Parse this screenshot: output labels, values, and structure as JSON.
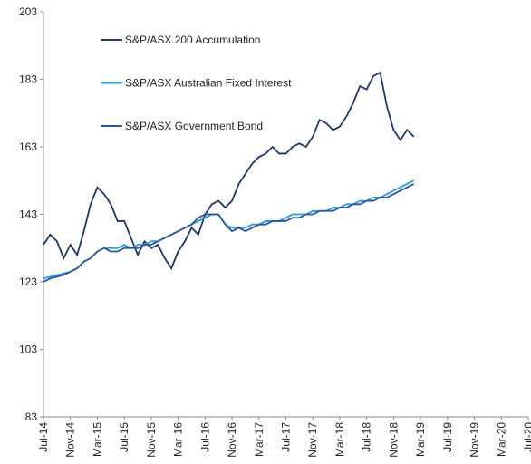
{
  "chart_data": {
    "type": "line",
    "x": [
      0,
      1,
      2,
      3,
      4,
      5,
      6,
      7,
      8,
      9,
      10,
      11,
      12,
      13,
      14,
      15,
      16,
      17,
      18,
      19,
      20,
      21,
      22,
      23,
      24,
      25,
      26,
      27,
      28,
      29,
      30,
      31,
      32,
      33,
      34,
      35,
      36,
      37,
      38,
      39,
      40,
      41,
      42,
      43,
      44,
      45,
      46,
      47,
      48,
      49,
      50,
      51,
      52,
      53,
      54,
      55
    ],
    "series": [
      {
        "name": "S&P/ASX 200 Accumulation",
        "color": "#1f3864",
        "values": [
          134,
          137,
          135,
          130,
          134,
          131,
          138,
          146,
          151,
          149,
          146,
          141,
          141,
          136,
          131,
          135,
          133,
          134,
          130,
          127,
          132,
          135,
          139,
          137,
          143,
          146,
          147,
          145,
          147,
          152,
          155,
          158,
          160,
          161,
          163,
          161,
          161,
          163,
          164,
          163,
          166,
          171,
          170,
          168,
          169,
          172,
          176,
          181,
          180,
          184,
          185,
          175,
          168,
          165,
          168,
          166
        ]
      },
      {
        "name": "S&P/ASX Australian Fixed Interest",
        "color": "#2e9bd6",
        "values": [
          124,
          124.5,
          125,
          125.5,
          126,
          127,
          129,
          130,
          132,
          133,
          133,
          133,
          134,
          133,
          134,
          134,
          135,
          135,
          136,
          137,
          138,
          139,
          140,
          141,
          142,
          143,
          143,
          140,
          139,
          139,
          139,
          140,
          140,
          141,
          141,
          141,
          142,
          143,
          143,
          143,
          144,
          144,
          144,
          145,
          145,
          146,
          146,
          147,
          147,
          148,
          148,
          149,
          150,
          151,
          152,
          153
        ]
      },
      {
        "name": "S&P/ASX Government Bond",
        "color": "#2f5597",
        "values": [
          123,
          124,
          124.5,
          125,
          126,
          127,
          129,
          130,
          132,
          133,
          132,
          132,
          133,
          133,
          133,
          134,
          134,
          135,
          136,
          137,
          138,
          139,
          140,
          142,
          143,
          143,
          143,
          140,
          138,
          139,
          138,
          139,
          140,
          140,
          141,
          141,
          141,
          142,
          142,
          143,
          143,
          144,
          144,
          144,
          145,
          145,
          146,
          146,
          147,
          147,
          148,
          148,
          149,
          150,
          151,
          152
        ]
      }
    ],
    "xlim": [
      0,
      72
    ],
    "xticks": [
      {
        "value": 0,
        "label": "Jul-14"
      },
      {
        "value": 4,
        "label": "Nov-14"
      },
      {
        "value": 8,
        "label": "Mar-15"
      },
      {
        "value": 12,
        "label": "Jul-15"
      },
      {
        "value": 16,
        "label": "Nov-15"
      },
      {
        "value": 20,
        "label": "Mar-16"
      },
      {
        "value": 24,
        "label": "Jul-16"
      },
      {
        "value": 28,
        "label": "Nov-16"
      },
      {
        "value": 32,
        "label": "Mar-17"
      },
      {
        "value": 36,
        "label": "Jul-17"
      },
      {
        "value": 40,
        "label": "Nov-17"
      },
      {
        "value": 44,
        "label": "Mar-18"
      },
      {
        "value": 48,
        "label": "Jul-18"
      },
      {
        "value": 52,
        "label": "Nov-18"
      },
      {
        "value": 56,
        "label": "Mar-19"
      },
      {
        "value": 60,
        "label": "Jul-19"
      },
      {
        "value": 64,
        "label": "Nov-19"
      },
      {
        "value": 68,
        "label": "Mar-20"
      },
      {
        "value": 72,
        "label": "Jul-20"
      }
    ],
    "ylim": [
      83,
      203
    ],
    "yticks": [
      83,
      103,
      123,
      143,
      163,
      183,
      203
    ],
    "legend": "top-left"
  }
}
